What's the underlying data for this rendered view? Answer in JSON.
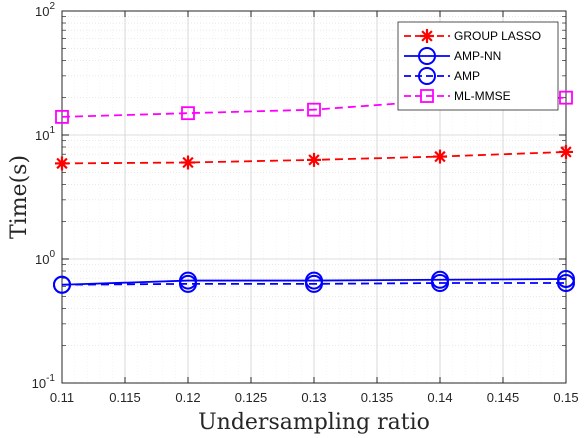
{
  "chart_data": {
    "type": "line",
    "xlabel": "Undersampling ratio",
    "ylabel": "Time(s)",
    "yscale": "log",
    "xlim": [
      0.11,
      0.15
    ],
    "ylim": [
      0.1,
      100
    ],
    "grid": true,
    "minor_grid": true,
    "legend_position": "top-right",
    "x_ticks": [
      "0.11",
      "0.115",
      "0.12",
      "0.125",
      "0.13",
      "0.135",
      "0.14",
      "0.145",
      "0.15"
    ],
    "x_tick_values": [
      0.11,
      0.115,
      0.12,
      0.125,
      0.13,
      0.135,
      0.14,
      0.145,
      0.15
    ],
    "y_ticks": [
      {
        "value": 0.1,
        "base": "10",
        "exp": "-1"
      },
      {
        "value": 1,
        "base": "10",
        "exp": "0"
      },
      {
        "value": 10,
        "base": "10",
        "exp": "1"
      },
      {
        "value": 100,
        "base": "10",
        "exp": "2"
      }
    ],
    "x": [
      0.11,
      0.12,
      0.13,
      0.14,
      0.15
    ],
    "series": [
      {
        "name": "GROUP LASSO",
        "values": [
          5.9,
          6.0,
          6.3,
          6.7,
          7.3
        ],
        "color": "#ff0000",
        "dash": "dashed",
        "marker": "asterisk"
      },
      {
        "name": "AMP-NN",
        "values": [
          0.62,
          0.67,
          0.67,
          0.68,
          0.69
        ],
        "color": "#0000ff",
        "dash": "solid",
        "marker": "circle"
      },
      {
        "name": "AMP",
        "values": [
          0.62,
          0.63,
          0.63,
          0.64,
          0.64
        ],
        "color": "#0000ff",
        "dash": "dashed",
        "marker": "circle"
      },
      {
        "name": "ML-MMSE",
        "values": [
          14,
          15,
          16,
          19,
          20
        ],
        "color": "#ff00ff",
        "dash": "dashed",
        "marker": "square"
      }
    ]
  }
}
